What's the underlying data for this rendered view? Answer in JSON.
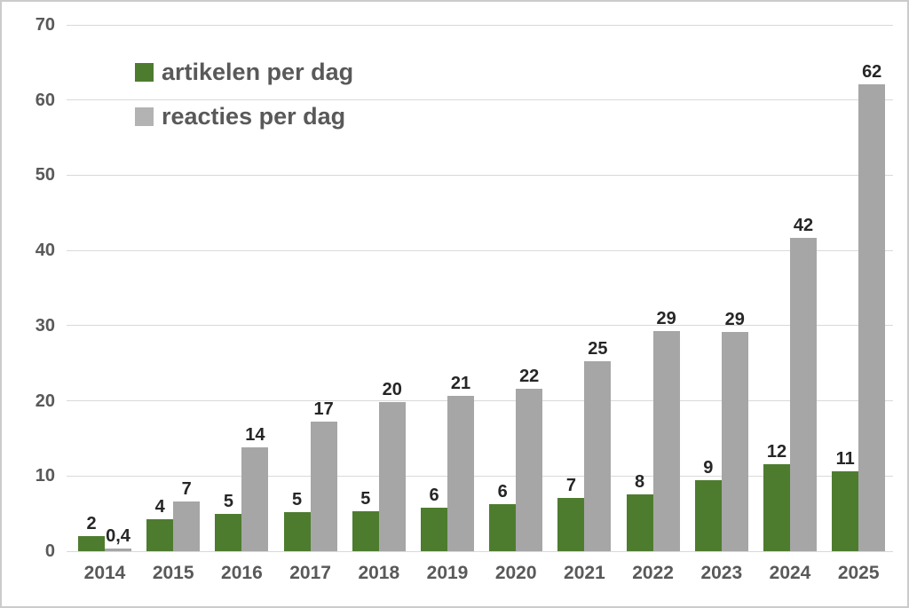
{
  "colors": {
    "background": "#ffffff",
    "frame_border": "#cbcbcb",
    "gridline": "#d9d9d9",
    "axis_label": "#595959",
    "data_label": "#262626",
    "series_green": "#4e7c2f",
    "series_gray": "#a6a6a6",
    "legend_gray_swatch": "#b3b3b3"
  },
  "legend": {
    "items": [
      {
        "label": "artikelen per dag",
        "color": "#4e7c2f"
      },
      {
        "label": "reacties per dag",
        "color": "#b3b3b3"
      }
    ]
  },
  "chart_data": {
    "type": "bar",
    "title": "",
    "xlabel": "",
    "ylabel": "",
    "categories": [
      "2014",
      "2015",
      "2016",
      "2017",
      "2018",
      "2019",
      "2020",
      "2021",
      "2022",
      "2023",
      "2024",
      "2025"
    ],
    "series": [
      {
        "name": "artikelen per dag",
        "key": "artikelen",
        "color": "#4e7c2f",
        "values": [
          2,
          4,
          5,
          5,
          5,
          6,
          6,
          7,
          8,
          9,
          12,
          11
        ],
        "labels": [
          "2",
          "4",
          "5",
          "5",
          "5",
          "6",
          "6",
          "7",
          "8",
          "9",
          "12",
          "11"
        ],
        "plot_values": [
          2.0,
          4.2,
          4.9,
          5.2,
          5.3,
          5.8,
          6.3,
          7.1,
          7.6,
          9.4,
          11.6,
          10.6
        ]
      },
      {
        "name": "reacties per dag",
        "key": "reacties",
        "color": "#a6a6a6",
        "values": [
          0.4,
          7,
          14,
          17,
          20,
          21,
          22,
          25,
          29,
          29,
          42,
          62
        ],
        "labels": [
          "0,4",
          "7",
          "14",
          "17",
          "20",
          "21",
          "22",
          "25",
          "29",
          "29",
          "42",
          "62"
        ],
        "plot_values": [
          0.4,
          6.6,
          13.8,
          17.2,
          19.8,
          20.7,
          21.6,
          25.3,
          29.3,
          29.2,
          41.7,
          62.1
        ]
      }
    ],
    "ylim": [
      0,
      70
    ],
    "yticks": [
      0,
      10,
      20,
      30,
      40,
      50,
      60,
      70
    ],
    "grid": true,
    "legend_position": "top-left-inside"
  }
}
